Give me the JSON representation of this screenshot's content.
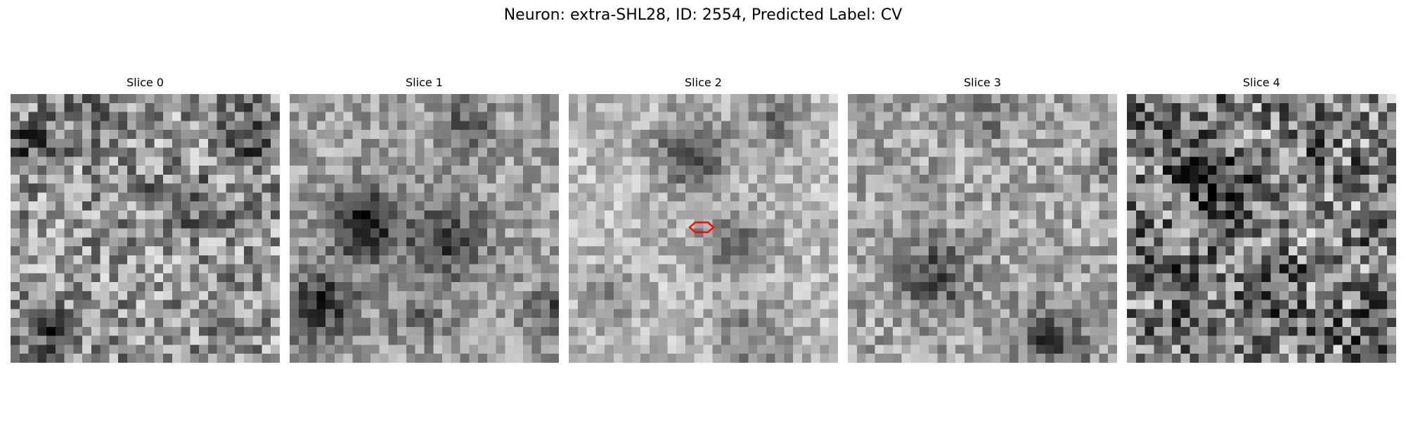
{
  "figure": {
    "title": "Neuron: extra-SHL28, ID: 2554, Predicted Label: CV"
  },
  "panels": [
    {
      "title": "Slice 0",
      "seed": 11,
      "show_roi": false
    },
    {
      "title": "Slice 1",
      "seed": 23,
      "show_roi": false
    },
    {
      "title": "Slice 2",
      "seed": 37,
      "show_roi": true
    },
    {
      "title": "Slice 3",
      "seed": 53,
      "show_roi": false
    },
    {
      "title": "Slice 4",
      "seed": 71,
      "show_roi": false
    }
  ],
  "roi": {
    "color": "#ff0000",
    "shape": "hexagon-outline"
  },
  "colormap": "gray"
}
